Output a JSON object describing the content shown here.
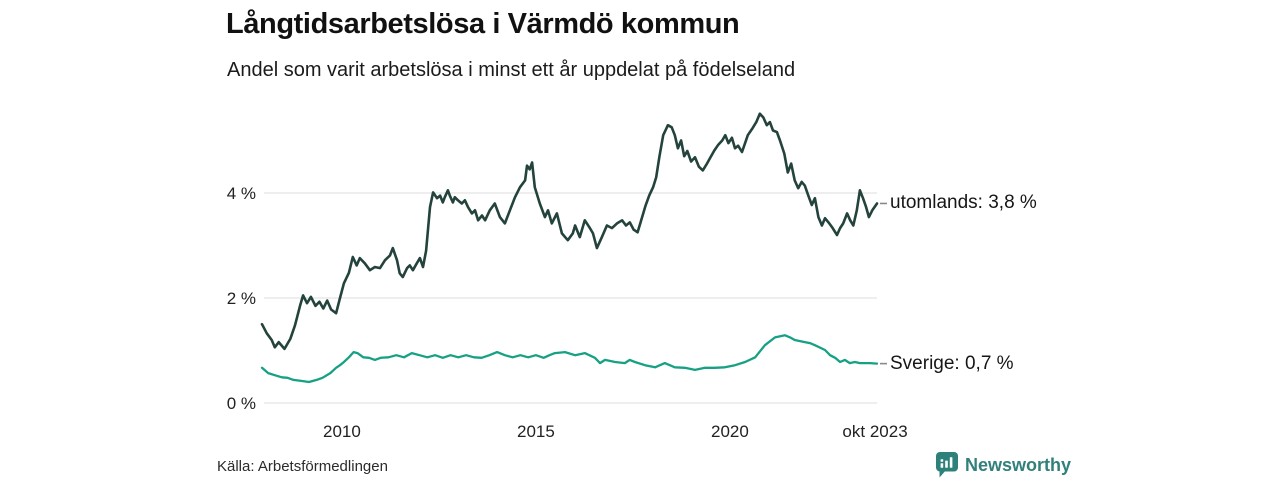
{
  "header": {
    "title": "Långtidsarbetslösa i Värmdö kommun",
    "subtitle": "Andel som varit arbetslösa i minst ett år uppdelat på födelseland"
  },
  "chart_data": {
    "type": "line",
    "title": "Långtidsarbetslösa i Värmdö kommun",
    "subtitle": "Andel som varit arbetslösa i minst ett år uppdelat på födelseland",
    "grid": "horizontal-only",
    "legend_position": "end-of-line-labels-right",
    "x_axis": {
      "label": "",
      "range": [
        2007.94,
        2023.79
      ],
      "ticks": [
        {
          "value": 2010,
          "label": "2010"
        },
        {
          "value": 2015,
          "label": "2015"
        },
        {
          "value": 2020,
          "label": "2020"
        },
        {
          "value": 2023.74,
          "label": "okt 2023"
        }
      ]
    },
    "y_axis": {
      "label": "",
      "unit": "%",
      "range": [
        0,
        5.58
      ],
      "ticks": [
        {
          "value": 0,
          "label": "0 %"
        },
        {
          "value": 2,
          "label": "2 %"
        },
        {
          "value": 4,
          "label": "4 %"
        }
      ]
    },
    "series": [
      {
        "name": "utomlands",
        "end_label": "utomlands: 3,8 %",
        "latest_value": "3,8 %",
        "color": "#24433c",
        "points": [
          [
            2007.94,
            1.5
          ],
          [
            2008.06,
            1.33
          ],
          [
            2008.19,
            1.2
          ],
          [
            2008.27,
            1.06
          ],
          [
            2008.37,
            1.16
          ],
          [
            2008.52,
            1.03
          ],
          [
            2008.67,
            1.22
          ],
          [
            2008.79,
            1.48
          ],
          [
            2008.92,
            1.85
          ],
          [
            2009.0,
            2.05
          ],
          [
            2009.1,
            1.9
          ],
          [
            2009.2,
            2.02
          ],
          [
            2009.32,
            1.85
          ],
          [
            2009.42,
            1.93
          ],
          [
            2009.52,
            1.8
          ],
          [
            2009.62,
            1.95
          ],
          [
            2009.72,
            1.78
          ],
          [
            2009.85,
            1.71
          ],
          [
            2009.95,
            2.0
          ],
          [
            2010.05,
            2.28
          ],
          [
            2010.18,
            2.48
          ],
          [
            2010.28,
            2.78
          ],
          [
            2010.38,
            2.62
          ],
          [
            2010.46,
            2.76
          ],
          [
            2010.59,
            2.66
          ],
          [
            2010.72,
            2.53
          ],
          [
            2010.85,
            2.59
          ],
          [
            2010.98,
            2.57
          ],
          [
            2011.11,
            2.72
          ],
          [
            2011.24,
            2.81
          ],
          [
            2011.31,
            2.95
          ],
          [
            2011.42,
            2.72
          ],
          [
            2011.49,
            2.47
          ],
          [
            2011.57,
            2.4
          ],
          [
            2011.68,
            2.57
          ],
          [
            2011.75,
            2.62
          ],
          [
            2011.83,
            2.53
          ],
          [
            2011.93,
            2.66
          ],
          [
            2012.01,
            2.76
          ],
          [
            2012.09,
            2.59
          ],
          [
            2012.17,
            2.9
          ],
          [
            2012.27,
            3.73
          ],
          [
            2012.35,
            4.01
          ],
          [
            2012.45,
            3.9
          ],
          [
            2012.53,
            3.95
          ],
          [
            2012.6,
            3.82
          ],
          [
            2012.65,
            3.92
          ],
          [
            2012.73,
            4.05
          ],
          [
            2012.78,
            3.95
          ],
          [
            2012.86,
            3.82
          ],
          [
            2012.91,
            3.92
          ],
          [
            2012.99,
            3.86
          ],
          [
            2013.09,
            3.8
          ],
          [
            2013.17,
            3.86
          ],
          [
            2013.25,
            3.73
          ],
          [
            2013.35,
            3.61
          ],
          [
            2013.43,
            3.67
          ],
          [
            2013.51,
            3.48
          ],
          [
            2013.61,
            3.57
          ],
          [
            2013.69,
            3.48
          ],
          [
            2013.81,
            3.67
          ],
          [
            2013.94,
            3.8
          ],
          [
            2014.07,
            3.54
          ],
          [
            2014.2,
            3.42
          ],
          [
            2014.33,
            3.67
          ],
          [
            2014.46,
            3.92
          ],
          [
            2014.59,
            4.11
          ],
          [
            2014.72,
            4.24
          ],
          [
            2014.77,
            4.52
          ],
          [
            2014.84,
            4.45
          ],
          [
            2014.9,
            4.58
          ],
          [
            2014.97,
            4.11
          ],
          [
            2015.1,
            3.8
          ],
          [
            2015.23,
            3.54
          ],
          [
            2015.31,
            3.67
          ],
          [
            2015.41,
            3.42
          ],
          [
            2015.54,
            3.61
          ],
          [
            2015.67,
            3.23
          ],
          [
            2015.82,
            3.1
          ],
          [
            2015.95,
            3.23
          ],
          [
            2016.01,
            3.38
          ],
          [
            2016.13,
            3.16
          ],
          [
            2016.26,
            3.48
          ],
          [
            2016.39,
            3.33
          ],
          [
            2016.47,
            3.23
          ],
          [
            2016.57,
            2.95
          ],
          [
            2016.7,
            3.16
          ],
          [
            2016.83,
            3.38
          ],
          [
            2016.96,
            3.33
          ],
          [
            2017.09,
            3.42
          ],
          [
            2017.22,
            3.48
          ],
          [
            2017.32,
            3.38
          ],
          [
            2017.42,
            3.44
          ],
          [
            2017.52,
            3.3
          ],
          [
            2017.62,
            3.25
          ],
          [
            2017.72,
            3.5
          ],
          [
            2017.82,
            3.75
          ],
          [
            2017.92,
            3.95
          ],
          [
            2018.02,
            4.11
          ],
          [
            2018.1,
            4.3
          ],
          [
            2018.18,
            4.68
          ],
          [
            2018.28,
            5.1
          ],
          [
            2018.4,
            5.29
          ],
          [
            2018.5,
            5.25
          ],
          [
            2018.58,
            5.1
          ],
          [
            2018.66,
            4.85
          ],
          [
            2018.74,
            5.0
          ],
          [
            2018.82,
            4.7
          ],
          [
            2018.9,
            4.8
          ],
          [
            2019.0,
            4.6
          ],
          [
            2019.1,
            4.68
          ],
          [
            2019.2,
            4.5
          ],
          [
            2019.3,
            4.43
          ],
          [
            2019.4,
            4.55
          ],
          [
            2019.5,
            4.68
          ],
          [
            2019.6,
            4.81
          ],
          [
            2019.7,
            4.92
          ],
          [
            2019.8,
            5.0
          ],
          [
            2019.88,
            5.1
          ],
          [
            2019.96,
            4.95
          ],
          [
            2020.05,
            5.05
          ],
          [
            2020.13,
            4.85
          ],
          [
            2020.21,
            4.9
          ],
          [
            2020.31,
            4.78
          ],
          [
            2020.39,
            4.95
          ],
          [
            2020.46,
            5.1
          ],
          [
            2020.57,
            5.22
          ],
          [
            2020.68,
            5.35
          ],
          [
            2020.77,
            5.51
          ],
          [
            2020.86,
            5.44
          ],
          [
            2020.95,
            5.29
          ],
          [
            2021.03,
            5.35
          ],
          [
            2021.11,
            5.19
          ],
          [
            2021.21,
            5.16
          ],
          [
            2021.29,
            5.0
          ],
          [
            2021.4,
            4.75
          ],
          [
            2021.49,
            4.39
          ],
          [
            2021.58,
            4.56
          ],
          [
            2021.67,
            4.24
          ],
          [
            2021.76,
            4.09
          ],
          [
            2021.85,
            4.21
          ],
          [
            2021.93,
            4.14
          ],
          [
            2022.02,
            3.95
          ],
          [
            2022.11,
            3.77
          ],
          [
            2022.19,
            3.9
          ],
          [
            2022.28,
            3.54
          ],
          [
            2022.37,
            3.38
          ],
          [
            2022.45,
            3.52
          ],
          [
            2022.54,
            3.44
          ],
          [
            2022.63,
            3.35
          ],
          [
            2022.76,
            3.2
          ],
          [
            2022.84,
            3.33
          ],
          [
            2022.92,
            3.42
          ],
          [
            2023.02,
            3.61
          ],
          [
            2023.1,
            3.48
          ],
          [
            2023.18,
            3.38
          ],
          [
            2023.27,
            3.67
          ],
          [
            2023.35,
            4.05
          ],
          [
            2023.43,
            3.9
          ],
          [
            2023.51,
            3.73
          ],
          [
            2023.58,
            3.54
          ],
          [
            2023.67,
            3.67
          ],
          [
            2023.79,
            3.8
          ]
        ]
      },
      {
        "name": "Sverige",
        "end_label": "Sverige: 0,7 %",
        "latest_value": "0,7 %",
        "color": "#17a184",
        "points": [
          [
            2007.94,
            0.67
          ],
          [
            2008.1,
            0.57
          ],
          [
            2008.27,
            0.53
          ],
          [
            2008.45,
            0.49
          ],
          [
            2008.6,
            0.48
          ],
          [
            2008.75,
            0.44
          ],
          [
            2008.95,
            0.42
          ],
          [
            2009.15,
            0.4
          ],
          [
            2009.35,
            0.44
          ],
          [
            2009.5,
            0.48
          ],
          [
            2009.7,
            0.57
          ],
          [
            2009.85,
            0.67
          ],
          [
            2009.95,
            0.72
          ],
          [
            2010.05,
            0.78
          ],
          [
            2010.18,
            0.87
          ],
          [
            2010.3,
            0.97
          ],
          [
            2010.4,
            0.95
          ],
          [
            2010.55,
            0.87
          ],
          [
            2010.7,
            0.86
          ],
          [
            2010.85,
            0.82
          ],
          [
            2011.0,
            0.86
          ],
          [
            2011.2,
            0.87
          ],
          [
            2011.4,
            0.91
          ],
          [
            2011.6,
            0.87
          ],
          [
            2011.8,
            0.95
          ],
          [
            2012.0,
            0.91
          ],
          [
            2012.2,
            0.87
          ],
          [
            2012.4,
            0.91
          ],
          [
            2012.6,
            0.86
          ],
          [
            2012.8,
            0.91
          ],
          [
            2013.0,
            0.87
          ],
          [
            2013.2,
            0.91
          ],
          [
            2013.4,
            0.87
          ],
          [
            2013.6,
            0.86
          ],
          [
            2013.8,
            0.91
          ],
          [
            2014.0,
            0.97
          ],
          [
            2014.2,
            0.91
          ],
          [
            2014.4,
            0.87
          ],
          [
            2014.6,
            0.91
          ],
          [
            2014.8,
            0.87
          ],
          [
            2015.0,
            0.91
          ],
          [
            2015.2,
            0.86
          ],
          [
            2015.35,
            0.91
          ],
          [
            2015.49,
            0.95
          ],
          [
            2015.75,
            0.97
          ],
          [
            2016.01,
            0.91
          ],
          [
            2016.26,
            0.95
          ],
          [
            2016.52,
            0.86
          ],
          [
            2016.65,
            0.76
          ],
          [
            2016.78,
            0.82
          ],
          [
            2017.04,
            0.78
          ],
          [
            2017.29,
            0.76
          ],
          [
            2017.42,
            0.82
          ],
          [
            2017.55,
            0.78
          ],
          [
            2017.81,
            0.72
          ],
          [
            2018.07,
            0.68
          ],
          [
            2018.32,
            0.76
          ],
          [
            2018.58,
            0.68
          ],
          [
            2018.84,
            0.67
          ],
          [
            2019.1,
            0.63
          ],
          [
            2019.36,
            0.67
          ],
          [
            2019.61,
            0.67
          ],
          [
            2019.87,
            0.68
          ],
          [
            2020.13,
            0.72
          ],
          [
            2020.39,
            0.78
          ],
          [
            2020.65,
            0.87
          ],
          [
            2020.9,
            1.1
          ],
          [
            2021.16,
            1.25
          ],
          [
            2021.42,
            1.29
          ],
          [
            2021.55,
            1.25
          ],
          [
            2021.67,
            1.2
          ],
          [
            2021.93,
            1.16
          ],
          [
            2022.06,
            1.14
          ],
          [
            2022.19,
            1.1
          ],
          [
            2022.45,
            1.01
          ],
          [
            2022.58,
            0.91
          ],
          [
            2022.71,
            0.86
          ],
          [
            2022.84,
            0.78
          ],
          [
            2022.96,
            0.82
          ],
          [
            2023.09,
            0.76
          ],
          [
            2023.22,
            0.78
          ],
          [
            2023.35,
            0.76
          ],
          [
            2023.48,
            0.76
          ],
          [
            2023.61,
            0.76
          ],
          [
            2023.79,
            0.75
          ]
        ]
      }
    ],
    "colors": {
      "grid": "#dcdcdc",
      "leader_dash": "#8a8a8a"
    },
    "source": "Källa: Arbetsförmedlingen"
  },
  "footer": {
    "source": "Källa: Arbetsförmedlingen",
    "brand": "Newsworthy",
    "brand_color": "#31807a"
  }
}
